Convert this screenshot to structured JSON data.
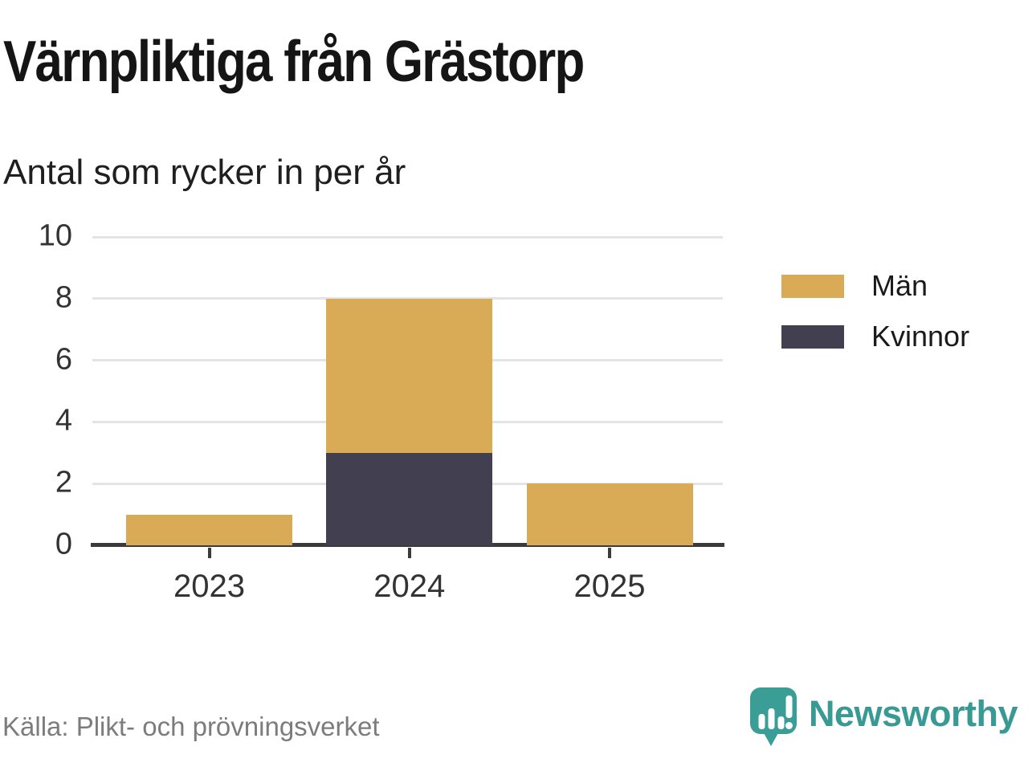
{
  "header": {
    "title": "Värnpliktiga från Grästorp",
    "subtitle": "Antal som rycker in per år"
  },
  "chart_data": {
    "type": "bar",
    "stacked": true,
    "title": "Värnpliktiga från Grästorp",
    "subtitle": "Antal som rycker in per år",
    "xlabel": "",
    "ylabel": "Antal som rycker in per år",
    "categories": [
      "2023",
      "2024",
      "2025"
    ],
    "series": [
      {
        "name": "Män",
        "color": "#d9ab57",
        "values": [
          1,
          5,
          2
        ]
      },
      {
        "name": "Kvinnor",
        "color": "#423f50",
        "values": [
          0,
          3,
          0
        ]
      }
    ],
    "stack_note": "Kvinnor stacked at bottom, Män on top; totals per year: 1, 8, 2",
    "ylim": [
      0,
      10
    ],
    "yticks": [
      0,
      2,
      4,
      6,
      8,
      10
    ],
    "grid": true,
    "legend_position": "right"
  },
  "footer": {
    "source": "Källa: Plikt- och prövningsverket",
    "brand": "Newsworthy"
  },
  "colors": {
    "men": "#d9ab57",
    "women": "#423f50",
    "brand_teal": "#399a94",
    "grid": "#e4e4e4",
    "axis": "#3b3b3b",
    "tick_text": "#333333",
    "source_text": "#7c7c7c"
  }
}
